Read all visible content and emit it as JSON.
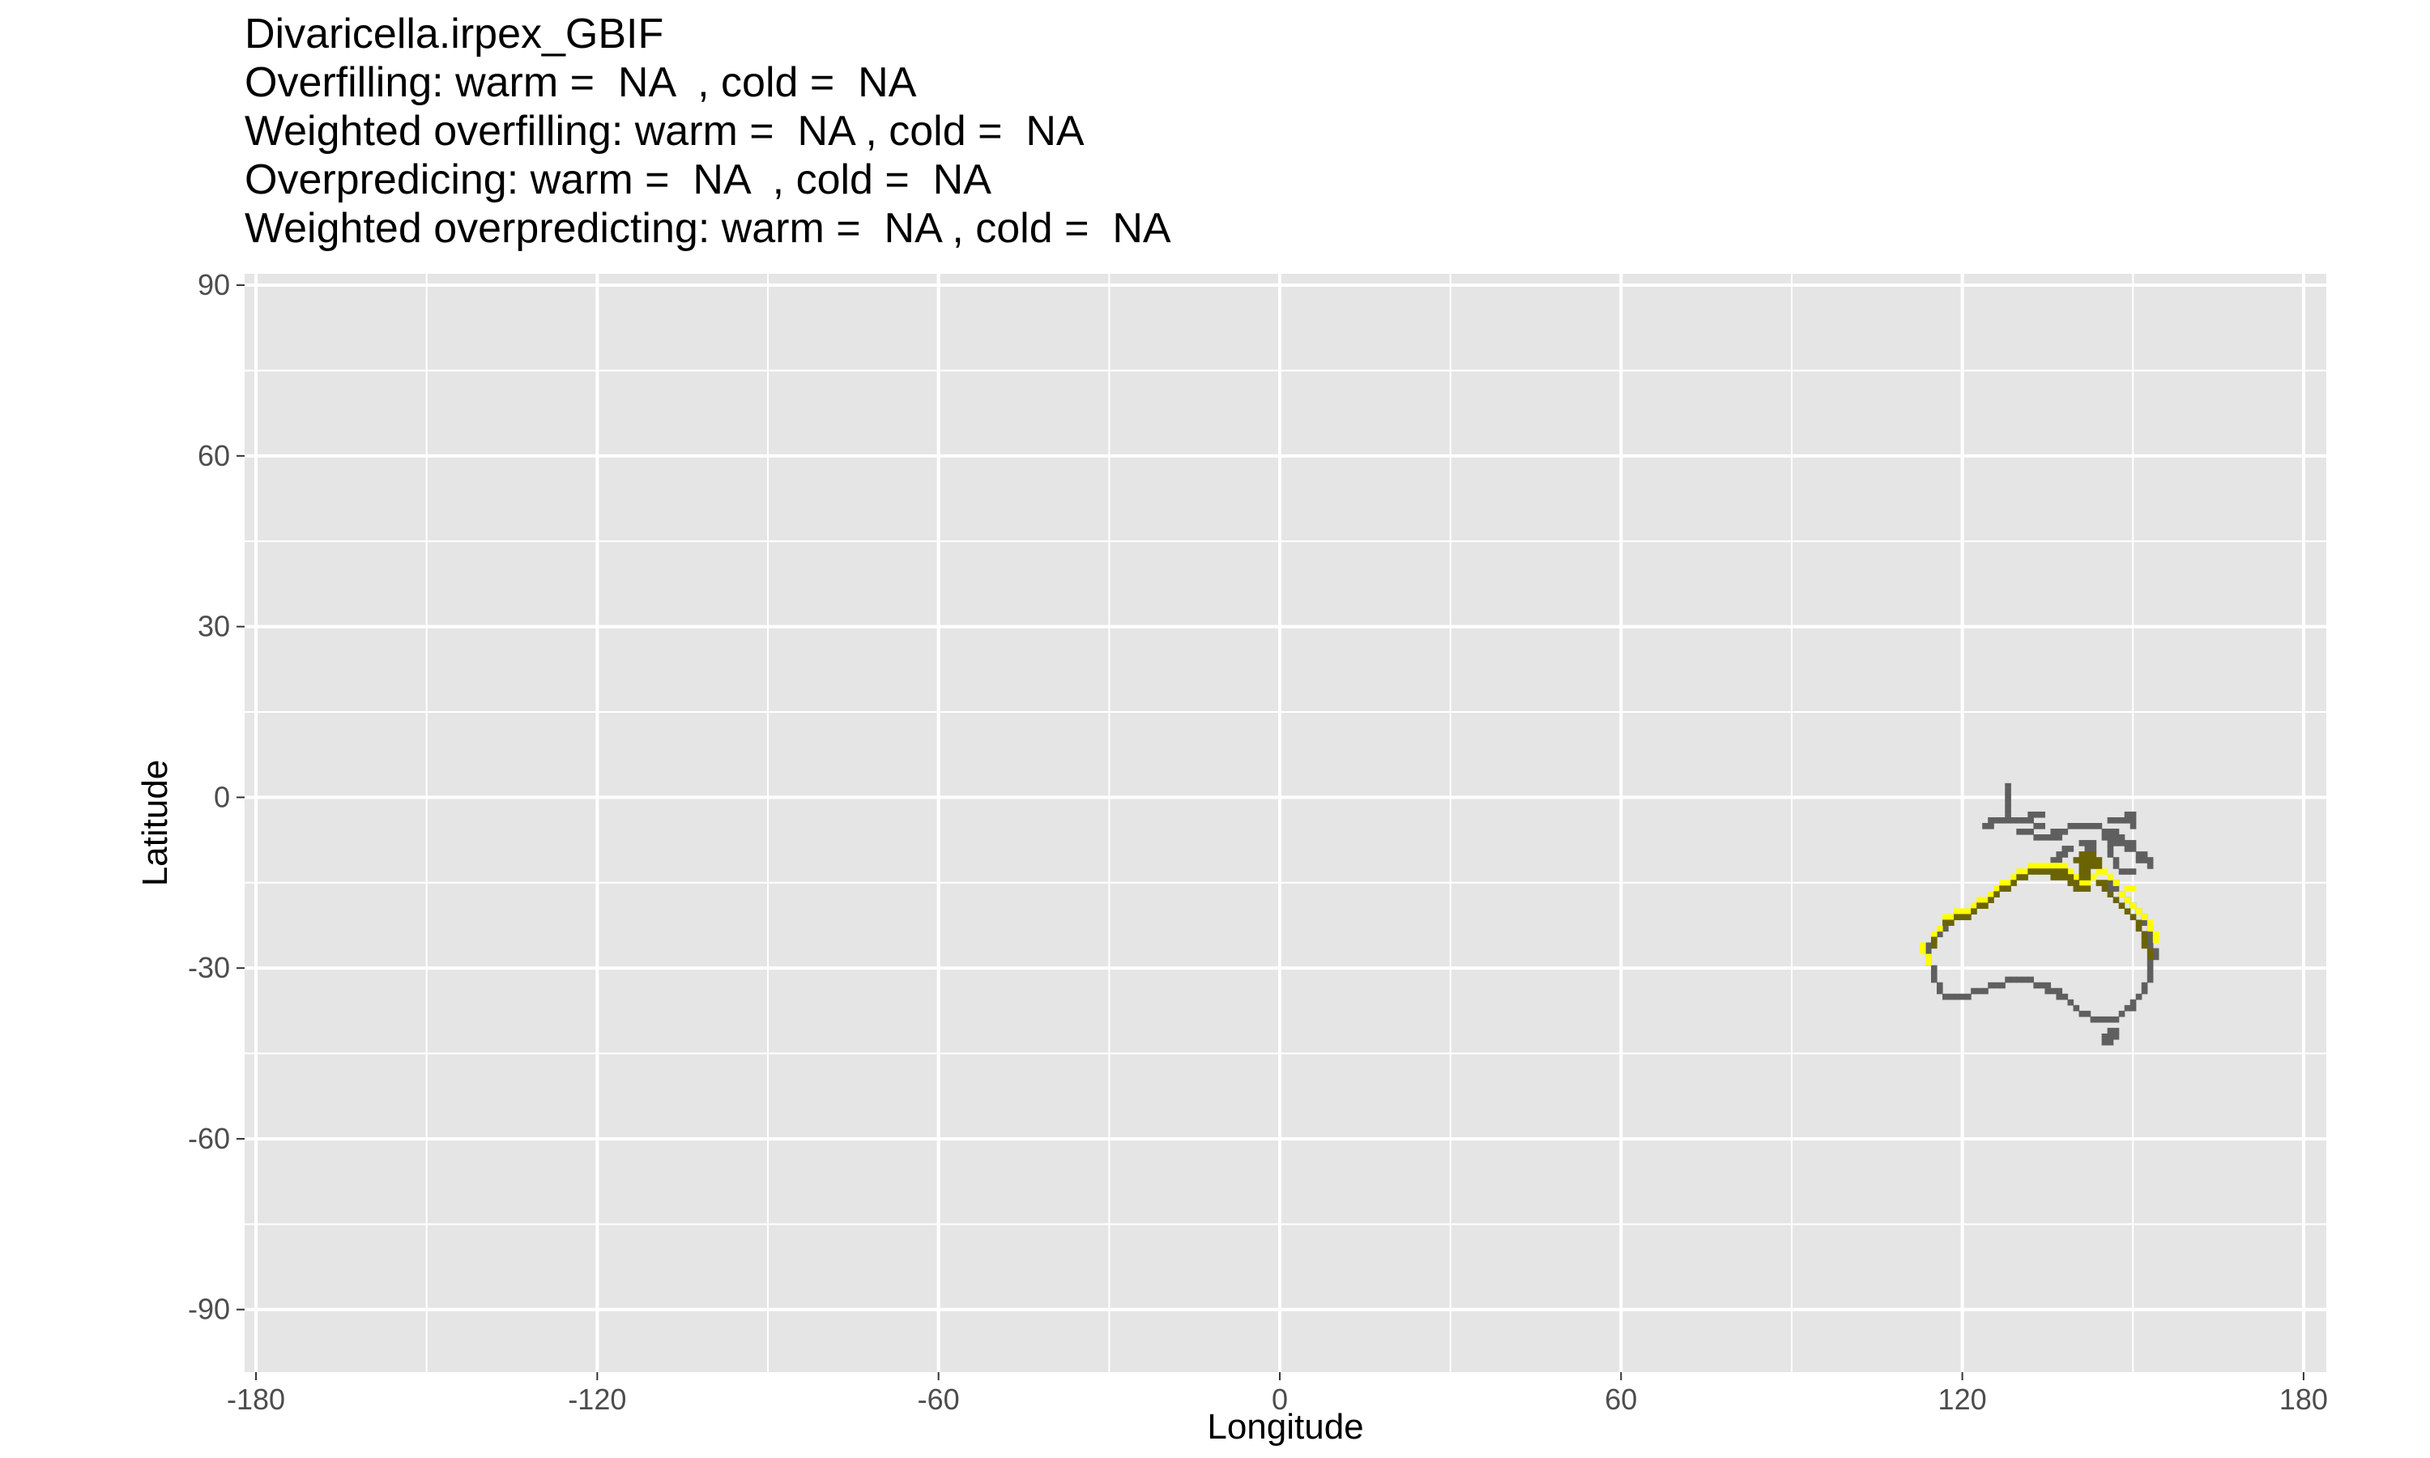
{
  "chart_data": {
    "type": "heatmap",
    "title_lines": [
      "Divaricella.irpex_GBIF",
      "Overfilling: warm =  NA  , cold =  NA",
      "Weighted overfilling: warm =  NA , cold =  NA",
      "Overpredicing: warm =  NA  , cold =  NA",
      "Weighted overpredicting: warm =  NA , cold =  NA"
    ],
    "xlabel": "Longitude",
    "ylabel": "Latitude",
    "xlim": [
      -182,
      184
    ],
    "ylim": [
      -101,
      92
    ],
    "x_ticks": [
      -180,
      -120,
      -60,
      0,
      60,
      120,
      180
    ],
    "y_ticks": [
      -90,
      -60,
      -30,
      0,
      30,
      60,
      90
    ],
    "x_tick_labels": [
      "-180",
      "-120",
      "-60",
      "0",
      "60",
      "120",
      "180"
    ],
    "y_tick_labels": [
      "-90",
      "-60",
      "-30",
      "0",
      "30",
      "60",
      "90"
    ],
    "grid": true,
    "colors": {
      "panel": "#e5e5e5",
      "grid": "#ffffff",
      "range": "#5f5f5f",
      "predicted": "#ffff00",
      "overlap": "#6b6405"
    },
    "layers": [
      {
        "name": "range",
        "color": "#5f5f5f",
        "cells": [
          [
            128,
            2
          ],
          [
            128,
            1
          ],
          [
            128,
            0
          ],
          [
            128,
            -1
          ],
          [
            128,
            -2
          ],
          [
            128,
            -3
          ],
          [
            128,
            -4
          ],
          [
            125,
            -4
          ],
          [
            126,
            -4
          ],
          [
            127,
            -4
          ],
          [
            129,
            -4
          ],
          [
            130,
            -4
          ],
          [
            131,
            -4
          ],
          [
            132,
            -4
          ],
          [
            124,
            -5
          ],
          [
            125,
            -5
          ],
          [
            133,
            -5
          ],
          [
            134,
            -5
          ],
          [
            132,
            -3
          ],
          [
            133,
            -3
          ],
          [
            134,
            -3
          ],
          [
            130,
            -6
          ],
          [
            131,
            -6
          ],
          [
            132,
            -6
          ],
          [
            133,
            -7
          ],
          [
            134,
            -7
          ],
          [
            135,
            -7
          ],
          [
            136,
            -7
          ],
          [
            137,
            -7
          ],
          [
            136,
            -6
          ],
          [
            137,
            -6
          ],
          [
            138,
            -6
          ],
          [
            139,
            -5
          ],
          [
            140,
            -5
          ],
          [
            141,
            -5
          ],
          [
            142,
            -5
          ],
          [
            143,
            -5
          ],
          [
            144,
            -5
          ],
          [
            145,
            -6
          ],
          [
            146,
            -6
          ],
          [
            147,
            -6
          ],
          [
            145,
            -7
          ],
          [
            146,
            -7
          ],
          [
            147,
            -7
          ],
          [
            148,
            -7
          ],
          [
            146,
            -8
          ],
          [
            147,
            -8
          ],
          [
            148,
            -8
          ],
          [
            149,
            -8
          ],
          [
            150,
            -8
          ],
          [
            146,
            -4
          ],
          [
            147,
            -4
          ],
          [
            148,
            -4
          ],
          [
            149,
            -4
          ],
          [
            149,
            -3
          ],
          [
            150,
            -3
          ],
          [
            150,
            -4
          ],
          [
            150,
            -5
          ],
          [
            141,
            -8
          ],
          [
            142,
            -8
          ],
          [
            143,
            -8
          ],
          [
            142,
            -9
          ],
          [
            143,
            -9
          ],
          [
            149,
            -9
          ],
          [
            150,
            -9
          ],
          [
            151,
            -10
          ],
          [
            152,
            -10
          ],
          [
            151,
            -11
          ],
          [
            152,
            -11
          ],
          [
            153,
            -11
          ],
          [
            153,
            -12
          ],
          [
            146,
            -9
          ],
          [
            146,
            -10
          ],
          [
            147,
            -11
          ],
          [
            147,
            -12
          ],
          [
            148,
            -13
          ],
          [
            149,
            -13
          ],
          [
            150,
            -13
          ],
          [
            138,
            -9
          ],
          [
            139,
            -9
          ],
          [
            137,
            -10
          ],
          [
            138,
            -10
          ],
          [
            136,
            -11
          ],
          [
            137,
            -11
          ],
          [
            146,
            -15
          ],
          [
            147,
            -15
          ],
          [
            146,
            -16
          ],
          [
            147,
            -16
          ],
          [
            148,
            -17
          ],
          [
            149,
            -18
          ],
          [
            150,
            -19
          ],
          [
            151,
            -20
          ],
          [
            152,
            -21
          ],
          [
            152,
            -22
          ],
          [
            153,
            -23
          ],
          [
            153,
            -24
          ],
          [
            153,
            -25
          ],
          [
            153,
            -26
          ],
          [
            154,
            -27
          ],
          [
            154,
            -28
          ],
          [
            153,
            -29
          ],
          [
            153,
            -30
          ],
          [
            153,
            -31
          ],
          [
            153,
            -32
          ],
          [
            152,
            -33
          ],
          [
            152,
            -34
          ],
          [
            151,
            -35
          ],
          [
            150,
            -36
          ],
          [
            150,
            -37
          ],
          [
            149,
            -37
          ],
          [
            148,
            -38
          ],
          [
            147,
            -39
          ],
          [
            146,
            -39
          ],
          [
            145,
            -39
          ],
          [
            144,
            -39
          ],
          [
            143,
            -39
          ],
          [
            146,
            -41
          ],
          [
            147,
            -41
          ],
          [
            145,
            -42
          ],
          [
            146,
            -42
          ],
          [
            147,
            -42
          ],
          [
            145,
            -43
          ],
          [
            146,
            -43
          ],
          [
            142,
            -38
          ],
          [
            141,
            -38
          ],
          [
            140,
            -37
          ],
          [
            139,
            -36
          ],
          [
            138,
            -35
          ],
          [
            137,
            -35
          ],
          [
            137,
            -34
          ],
          [
            136,
            -34
          ],
          [
            135,
            -34
          ],
          [
            135,
            -33
          ],
          [
            134,
            -33
          ],
          [
            133,
            -33
          ],
          [
            132,
            -32
          ],
          [
            131,
            -32
          ],
          [
            130,
            -32
          ],
          [
            129,
            -32
          ],
          [
            128,
            -32
          ],
          [
            127,
            -33
          ],
          [
            126,
            -33
          ],
          [
            125,
            -33
          ],
          [
            124,
            -34
          ],
          [
            123,
            -34
          ],
          [
            122,
            -34
          ],
          [
            121,
            -35
          ],
          [
            120,
            -35
          ],
          [
            119,
            -35
          ],
          [
            118,
            -35
          ],
          [
            117,
            -35
          ],
          [
            116,
            -34
          ],
          [
            116,
            -33
          ],
          [
            115,
            -32
          ],
          [
            115,
            -31
          ],
          [
            115,
            -30
          ],
          [
            114,
            -29
          ],
          [
            114,
            -28
          ],
          [
            114,
            -27
          ],
          [
            114,
            -26
          ],
          [
            115,
            -25
          ],
          [
            116,
            -24
          ],
          [
            117,
            -23
          ]
        ]
      },
      {
        "name": "predicted",
        "color": "#ffff00",
        "cells": [
          [
            115,
            -24
          ],
          [
            116,
            -23
          ],
          [
            117,
            -22
          ],
          [
            117,
            -21
          ],
          [
            118,
            -21
          ],
          [
            119,
            -20
          ],
          [
            120,
            -20
          ],
          [
            121,
            -20
          ],
          [
            122,
            -19
          ],
          [
            123,
            -18
          ],
          [
            124,
            -18
          ],
          [
            125,
            -17
          ],
          [
            126,
            -16
          ],
          [
            127,
            -15
          ],
          [
            128,
            -15
          ],
          [
            129,
            -14
          ],
          [
            130,
            -13
          ],
          [
            131,
            -13
          ],
          [
            132,
            -12
          ],
          [
            133,
            -12
          ],
          [
            134,
            -12
          ],
          [
            135,
            -12
          ],
          [
            136,
            -12
          ],
          [
            137,
            -12
          ],
          [
            138,
            -12
          ],
          [
            139,
            -13
          ],
          [
            140,
            -14
          ],
          [
            141,
            -15
          ],
          [
            142,
            -15
          ],
          [
            143,
            -14
          ],
          [
            144,
            -13
          ],
          [
            145,
            -13
          ],
          [
            146,
            -14
          ],
          [
            147,
            -15
          ],
          [
            148,
            -17
          ],
          [
            149,
            -18
          ],
          [
            150,
            -19
          ],
          [
            151,
            -20
          ],
          [
            152,
            -21
          ],
          [
            153,
            -22
          ],
          [
            153,
            -23
          ],
          [
            154,
            -24
          ],
          [
            154,
            -25
          ],
          [
            149,
            -16
          ],
          [
            150,
            -16
          ],
          [
            114,
            -28
          ],
          [
            114,
            -29
          ],
          [
            113,
            -27
          ],
          [
            113,
            -26
          ]
        ]
      },
      {
        "name": "overlap",
        "color": "#6b6405",
        "cells": [
          [
            117,
            -22
          ],
          [
            118,
            -22
          ],
          [
            119,
            -21
          ],
          [
            120,
            -21
          ],
          [
            121,
            -21
          ],
          [
            122,
            -20
          ],
          [
            123,
            -19
          ],
          [
            124,
            -19
          ],
          [
            125,
            -18
          ],
          [
            126,
            -17
          ],
          [
            127,
            -16
          ],
          [
            128,
            -16
          ],
          [
            129,
            -15
          ],
          [
            130,
            -14
          ],
          [
            131,
            -14
          ],
          [
            132,
            -13
          ],
          [
            133,
            -13
          ],
          [
            134,
            -13
          ],
          [
            135,
            -13
          ],
          [
            136,
            -13
          ],
          [
            137,
            -13
          ],
          [
            138,
            -13
          ],
          [
            139,
            -14
          ],
          [
            140,
            -15
          ],
          [
            141,
            -16
          ],
          [
            142,
            -16
          ],
          [
            141,
            -14
          ],
          [
            142,
            -14
          ],
          [
            141,
            -13
          ],
          [
            142,
            -13
          ],
          [
            141,
            -12
          ],
          [
            142,
            -12
          ],
          [
            140,
            -11
          ],
          [
            141,
            -11
          ],
          [
            142,
            -11
          ],
          [
            143,
            -11
          ],
          [
            144,
            -11
          ],
          [
            143,
            -12
          ],
          [
            144,
            -12
          ],
          [
            141,
            -10
          ],
          [
            142,
            -10
          ],
          [
            143,
            -10
          ],
          [
            144,
            -15
          ],
          [
            145,
            -15
          ],
          [
            145,
            -16
          ],
          [
            146,
            -17
          ],
          [
            147,
            -18
          ],
          [
            148,
            -19
          ],
          [
            149,
            -20
          ],
          [
            150,
            -21
          ],
          [
            151,
            -22
          ],
          [
            151,
            -23
          ],
          [
            152,
            -24
          ],
          [
            152,
            -25
          ],
          [
            152,
            -26
          ],
          [
            153,
            -27
          ],
          [
            153,
            -28
          ],
          [
            115,
            -25
          ],
          [
            115,
            -26
          ],
          [
            136,
            -14
          ],
          [
            137,
            -14
          ],
          [
            138,
            -14
          ],
          [
            139,
            -15
          ],
          [
            140,
            -16
          ]
        ]
      }
    ]
  }
}
